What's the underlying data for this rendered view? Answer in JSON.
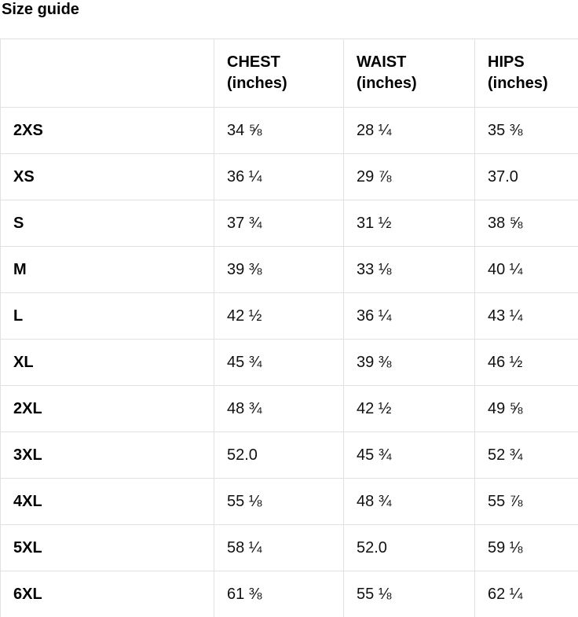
{
  "page": {
    "title": "Size guide"
  },
  "table": {
    "columns": [
      {
        "name": "CHEST",
        "unit": "(inches)"
      },
      {
        "name": "WAIST",
        "unit": "(inches)"
      },
      {
        "name": "HIPS",
        "unit": "(inches)"
      }
    ],
    "rows": [
      {
        "size": "2XS",
        "chest": "34 ⅝",
        "waist": "28 ¼",
        "hips": "35 ⅜"
      },
      {
        "size": "XS",
        "chest": "36 ¼",
        "waist": "29 ⅞",
        "hips": "37.0"
      },
      {
        "size": "S",
        "chest": "37 ¾",
        "waist": "31 ½",
        "hips": "38 ⅝"
      },
      {
        "size": "M",
        "chest": "39 ⅜",
        "waist": "33 ⅛",
        "hips": "40 ¼"
      },
      {
        "size": "L",
        "chest": "42 ½",
        "waist": "36 ¼",
        "hips": "43 ¼"
      },
      {
        "size": "XL",
        "chest": "45 ¾",
        "waist": "39 ⅜",
        "hips": "46 ½"
      },
      {
        "size": "2XL",
        "chest": "48 ¾",
        "waist": "42 ½",
        "hips": "49 ⅝"
      },
      {
        "size": "3XL",
        "chest": "52.0",
        "waist": "45 ¾",
        "hips": "52 ¾"
      },
      {
        "size": "4XL",
        "chest": "55 ⅛",
        "waist": "48 ¾",
        "hips": "55 ⅞"
      },
      {
        "size": "5XL",
        "chest": "58 ¼",
        "waist": "52.0",
        "hips": "59 ⅛"
      },
      {
        "size": "6XL",
        "chest": "61 ⅜",
        "waist": "55 ⅛",
        "hips": "62 ¼"
      }
    ],
    "colors": {
      "border": "#e1e1e1",
      "text": "#111111",
      "background": "#ffffff"
    }
  }
}
